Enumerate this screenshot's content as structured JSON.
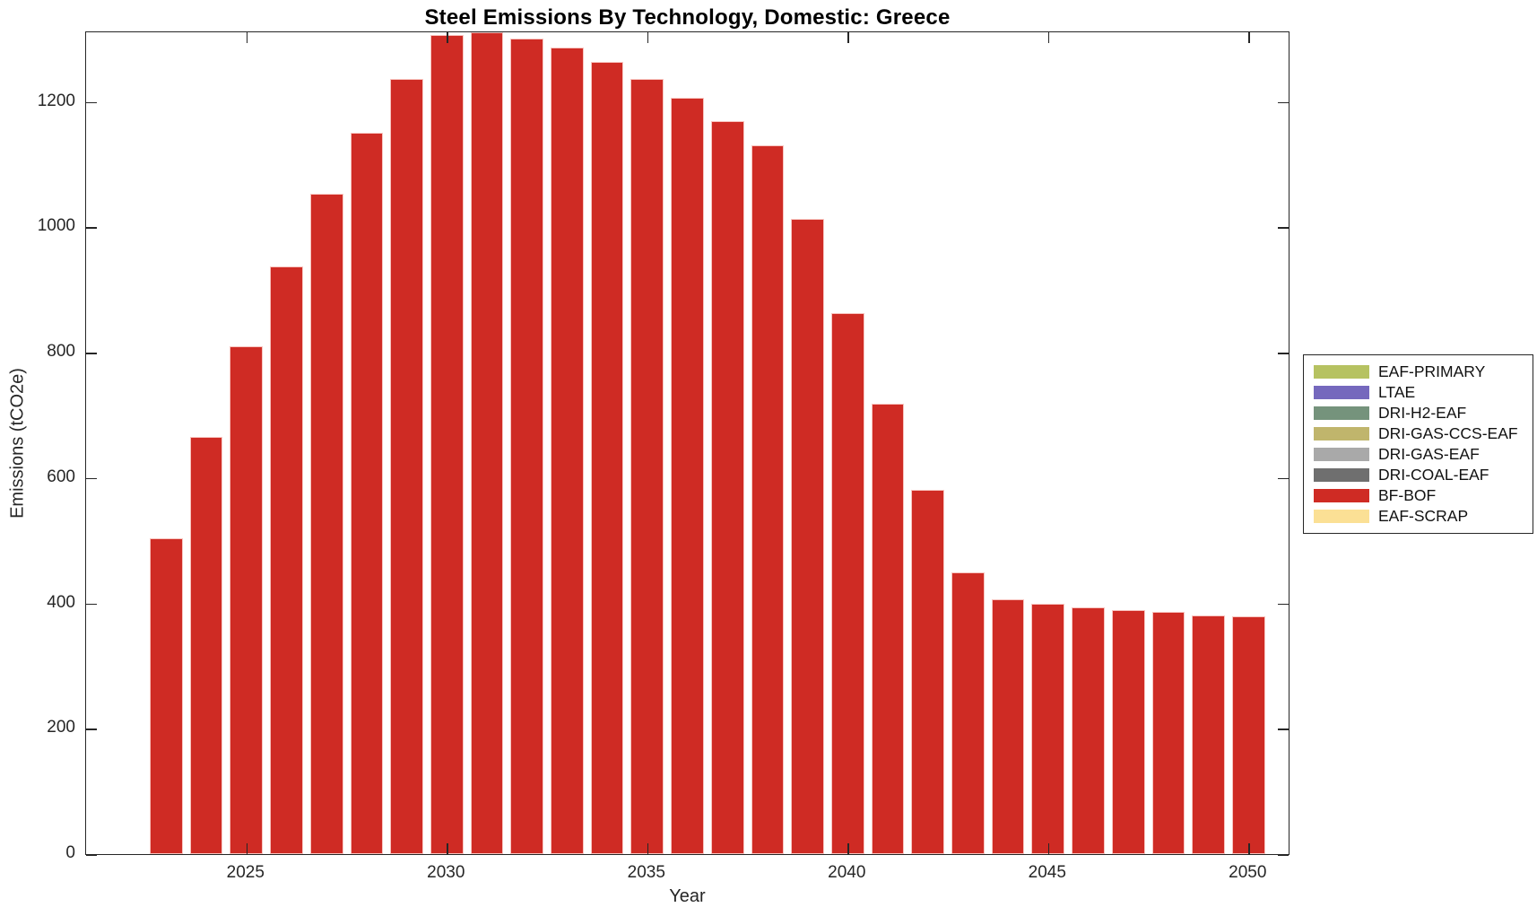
{
  "chart_data": {
    "type": "bar",
    "title": "Steel Emissions By Technology, Domestic: Greece",
    "xlabel": "Year",
    "ylabel": "Emissions (tCO2e)",
    "x": [
      2023,
      2024,
      2025,
      2026,
      2027,
      2028,
      2029,
      2030,
      2031,
      2032,
      2033,
      2034,
      2035,
      2036,
      2037,
      2038,
      2039,
      2040,
      2041,
      2042,
      2043,
      2044,
      2045,
      2046,
      2047,
      2048,
      2049,
      2050
    ],
    "series": [
      {
        "name": "BF-BOF",
        "color": "#cf2b24",
        "values": [
          504,
          666,
          810,
          937,
          1054,
          1151,
          1237,
          1307,
          1311,
          1301,
          1286,
          1264,
          1237,
          1206,
          1170,
          1130,
          1013,
          863,
          719,
          581,
          450,
          406,
          400,
          394,
          390,
          386,
          381,
          379
        ]
      }
    ],
    "xlim": [
      2021,
      2051
    ],
    "ylim": [
      0,
      1311
    ],
    "xticks": [
      2025,
      2030,
      2035,
      2040,
      2045,
      2050
    ],
    "yticks": [
      0,
      200,
      400,
      600,
      800,
      1000,
      1200
    ],
    "grid": false,
    "bar_width_fraction": 0.82,
    "axis_color": "#262626",
    "legend": {
      "position": "right-outside",
      "entries": [
        {
          "label": "EAF-PRIMARY",
          "color": "#b6c261"
        },
        {
          "label": "LTAE",
          "color": "#7568bd"
        },
        {
          "label": "DRI-H2-EAF",
          "color": "#75937c"
        },
        {
          "label": "DRI-GAS-CCS-EAF",
          "color": "#c0b56c"
        },
        {
          "label": "DRI-GAS-EAF",
          "color": "#a9a9a9"
        },
        {
          "label": "DRI-COAL-EAF",
          "color": "#6f6f6f"
        },
        {
          "label": "BF-BOF",
          "color": "#cf2b24"
        },
        {
          "label": "EAF-SCRAP",
          "color": "#fbe095"
        }
      ]
    }
  }
}
